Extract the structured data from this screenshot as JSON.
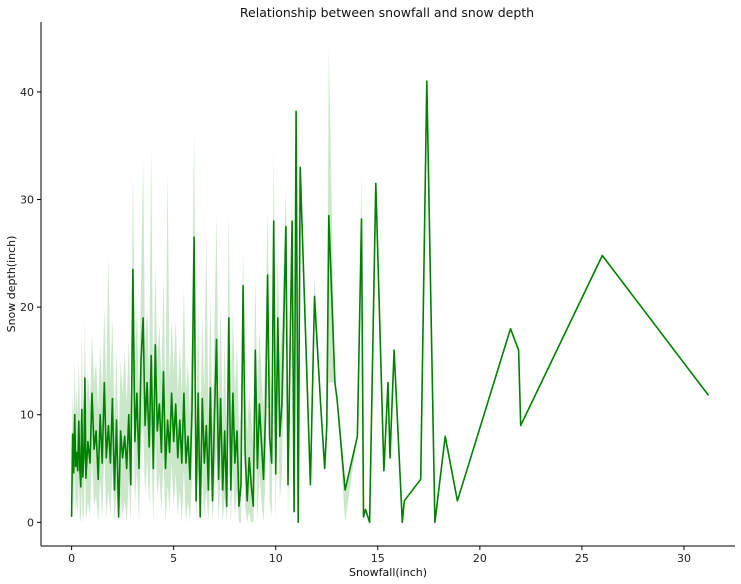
{
  "chart_data": {
    "type": "line",
    "title": "Relationship between snowfall and snow depth",
    "xlabel": "Snowfall(inch)",
    "ylabel": "Snow depth(inch)",
    "xlim": [
      -1.5,
      32.5
    ],
    "ylim": [
      -2.2,
      46.5
    ],
    "xticks": [
      0,
      5,
      10,
      15,
      20,
      25,
      30
    ],
    "yticks": [
      0,
      10,
      20,
      30,
      40
    ],
    "grid": false,
    "line_color": "#008000",
    "band_color": "#9fd39f",
    "series": [
      {
        "x": [
          0.0,
          0.05,
          0.1,
          0.15,
          0.2,
          0.25,
          0.3,
          0.35,
          0.4,
          0.45,
          0.5,
          0.55,
          0.6,
          0.65,
          0.7,
          0.8,
          0.9,
          1.0,
          1.1,
          1.2,
          1.3,
          1.4,
          1.5,
          1.6,
          1.7,
          1.8,
          1.9,
          2.0,
          2.1,
          2.2,
          2.3,
          2.4,
          2.5,
          2.6,
          2.7,
          2.8,
          2.9,
          3.0,
          3.1,
          3.2,
          3.3,
          3.4,
          3.5,
          3.6,
          3.7,
          3.8,
          3.9,
          4.0,
          4.1,
          4.2,
          4.3,
          4.4,
          4.5,
          4.6,
          4.7,
          4.8,
          4.9,
          5.0,
          5.1,
          5.2,
          5.3,
          5.4,
          5.5,
          5.6,
          5.7,
          5.8,
          5.9,
          6.0,
          6.1,
          6.2,
          6.3,
          6.4,
          6.5,
          6.6,
          6.7,
          6.8,
          6.9,
          7.0,
          7.1,
          7.2,
          7.3,
          7.4,
          7.5,
          7.6,
          7.7,
          7.8,
          7.9,
          8.0,
          8.1,
          8.2,
          8.3,
          8.4,
          8.5,
          8.6,
          8.7,
          8.8,
          8.9,
          9.0,
          9.1,
          9.2,
          9.3,
          9.4,
          9.5,
          9.6,
          9.7,
          9.8,
          9.9,
          10.0,
          10.1,
          10.2,
          10.3,
          10.5,
          10.6,
          10.8,
          10.9,
          11.0,
          11.1,
          11.2,
          11.7,
          11.9,
          12.2,
          12.4,
          12.5,
          12.6,
          12.9,
          13.0,
          13.4,
          14.0,
          14.2,
          14.3,
          14.4,
          14.6,
          14.9,
          15.3,
          15.5,
          15.6,
          15.8,
          16.2,
          16.3,
          17.1,
          17.4,
          17.8,
          18.3,
          18.9,
          21.5,
          21.9,
          22.0,
          26.0,
          31.2
        ],
        "y": [
          0.5,
          8.2,
          4.6,
          10.0,
          5.2,
          6.5,
          4.8,
          9.4,
          5.0,
          3.3,
          10.5,
          4.2,
          6.0,
          13.4,
          4.1,
          7.5,
          5.5,
          12.0,
          6.8,
          8.5,
          4.0,
          10.0,
          5.5,
          13.0,
          6.0,
          9.0,
          5.5,
          11.5,
          3.0,
          9.5,
          0.5,
          8.5,
          6.0,
          8.0,
          5.0,
          10.0,
          3.5,
          23.5,
          7.5,
          12.0,
          5.0,
          15.0,
          19.0,
          9.0,
          13.0,
          7.0,
          15.5,
          5.0,
          16.5,
          8.5,
          11.0,
          6.5,
          14.0,
          5.0,
          9.5,
          6.5,
          12.0,
          7.5,
          11.0,
          6.0,
          9.5,
          5.5,
          12.0,
          5.5,
          8.0,
          4.0,
          10.5,
          26.5,
          2.0,
          12.0,
          0.5,
          11.5,
          5.5,
          9.0,
          3.0,
          12.5,
          2.0,
          10.0,
          17.0,
          4.0,
          11.5,
          3.0,
          8.5,
          1.5,
          19.0,
          3.0,
          12.0,
          5.5,
          8.5,
          1.5,
          3.5,
          22.0,
          6.5,
          2.0,
          6.0,
          3.5,
          1.5,
          16.0,
          5.0,
          11.0,
          7.5,
          4.0,
          10.0,
          23.0,
          8.0,
          5.5,
          28.0,
          4.5,
          19.0,
          8.0,
          11.0,
          27.5,
          3.5,
          28.0,
          1.0,
          38.2,
          0.0,
          33.0,
          3.5,
          21.0,
          11.0,
          5.0,
          9.0,
          28.5,
          13.0,
          11.5,
          3.0,
          8.0,
          28.2,
          0.5,
          1.2,
          0.0,
          31.5,
          4.8,
          13.0,
          6.0,
          16.0,
          0.0,
          2.0,
          4.0,
          41.0,
          0.0,
          8.0,
          2.0,
          18.0,
          16.0,
          9.0,
          24.8,
          11.8
        ],
        "band_upper": [
          0.5,
          12.0,
          9.5,
          15.0,
          10.0,
          12.5,
          10.0,
          15.0,
          11.0,
          9.0,
          18.0,
          10.5,
          12.0,
          19.0,
          10.0,
          14.0,
          11.0,
          17.5,
          13.0,
          15.0,
          10.5,
          16.5,
          12.0,
          20.0,
          12.5,
          24.8,
          13.0,
          19.0,
          9.0,
          16.0,
          7.0,
          15.0,
          12.0,
          16.0,
          11.0,
          17.0,
          10.0,
          32.7,
          14.0,
          20.0,
          11.5,
          22.0,
          33.7,
          16.0,
          20.0,
          13.5,
          34.8,
          11.0,
          24.0,
          15.0,
          18.5,
          13.0,
          23.0,
          11.0,
          32.8,
          13.0,
          19.0,
          14.0,
          19.0,
          12.0,
          16.5,
          12.0,
          22.0,
          12.0,
          15.0,
          10.0,
          18.5,
          36.7,
          9.0,
          20.0,
          7.0,
          19.5,
          12.0,
          27.0,
          9.5,
          21.0,
          8.5,
          18.0,
          28.7,
          10.5,
          20.0,
          9.0,
          17.0,
          8.0,
          29.0,
          9.0,
          20.0,
          12.0,
          16.5,
          8.0,
          10.5,
          25.2,
          13.0,
          8.5,
          12.0,
          10.0,
          7.0,
          23.0,
          11.0,
          18.0,
          14.0,
          10.5,
          17.0,
          29.0,
          15.0,
          12.0,
          34.5,
          11.0,
          26.0,
          15.0,
          18.0,
          31.0,
          10.0,
          31.0,
          1.0,
          38.2,
          0.0,
          33.0,
          3.5,
          23.0,
          11.0,
          5.0,
          9.0,
          44.2,
          13.0,
          11.5,
          3.0,
          8.0,
          32.4,
          0.5,
          1.2,
          0.0,
          31.5,
          4.8,
          13.0,
          6.0,
          16.0,
          0.0,
          2.0,
          4.0,
          41.0,
          0.0,
          8.0,
          2.0,
          18.0,
          16.0,
          9.0,
          24.8,
          11.8
        ],
        "band_lower": [
          0.5,
          4.0,
          1.0,
          5.0,
          1.0,
          2.0,
          0.5,
          4.0,
          0.5,
          0.0,
          3.5,
          0.0,
          1.0,
          7.0,
          0.0,
          2.0,
          0.5,
          6.0,
          1.5,
          2.5,
          0.0,
          4.0,
          0.5,
          6.5,
          0.5,
          3.0,
          0.5,
          5.0,
          0.0,
          3.0,
          0.0,
          2.5,
          0.5,
          2.0,
          0.0,
          4.0,
          0.0,
          14.0,
          1.5,
          5.0,
          0.0,
          8.0,
          9.0,
          2.5,
          6.0,
          1.5,
          7.5,
          0.0,
          9.0,
          2.5,
          4.5,
          1.0,
          6.0,
          0.0,
          3.5,
          1.0,
          5.5,
          1.5,
          4.5,
          0.5,
          3.0,
          0.0,
          5.0,
          0.0,
          2.0,
          0.0,
          4.0,
          16.0,
          0.0,
          5.0,
          0.0,
          4.5,
          0.5,
          3.0,
          0.0,
          5.5,
          0.0,
          3.5,
          7.0,
          0.0,
          4.5,
          0.0,
          2.5,
          0.0,
          10.0,
          0.0,
          5.0,
          0.5,
          3.0,
          0.0,
          0.0,
          18.0,
          1.5,
          0.0,
          1.0,
          0.0,
          0.0,
          9.5,
          0.0,
          4.5,
          2.0,
          0.0,
          4.0,
          17.0,
          2.0,
          0.5,
          21.0,
          0.0,
          12.0,
          2.0,
          4.5,
          22.0,
          0.0,
          24.0,
          1.0,
          38.2,
          0.0,
          33.0,
          3.5,
          19.0,
          11.0,
          5.0,
          9.0,
          13.0,
          13.0,
          11.5,
          0.0,
          8.0,
          24.0,
          0.5,
          1.2,
          0.0,
          31.5,
          4.8,
          13.0,
          6.0,
          16.0,
          0.0,
          2.0,
          4.0,
          41.0,
          0.0,
          8.0,
          2.0,
          18.0,
          16.0,
          9.0,
          24.8,
          11.8
        ]
      }
    ]
  }
}
